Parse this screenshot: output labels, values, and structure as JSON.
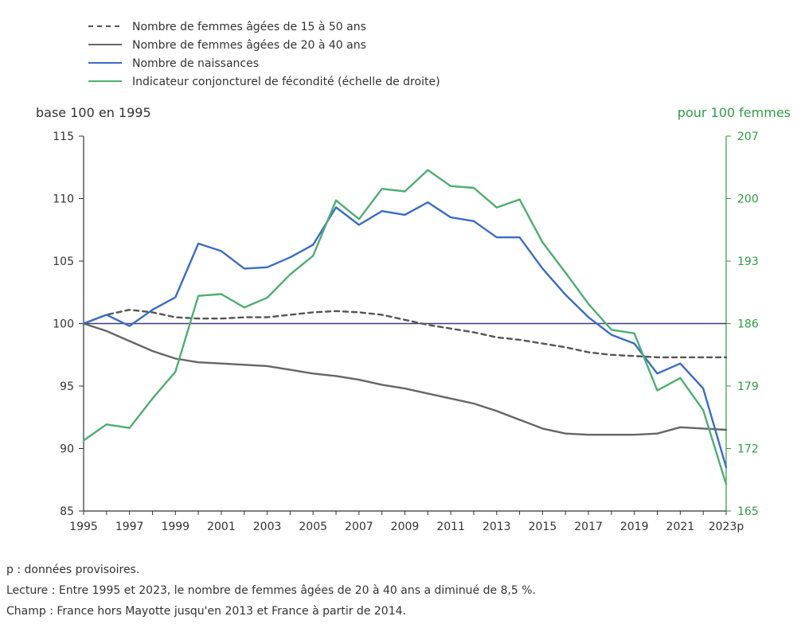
{
  "chart_data": {
    "type": "line",
    "legend": {
      "placement": "top-left",
      "entries": [
        "Nombre de femmes âgées de 15 à 50 ans",
        "Nombre de femmes âgées de 20 à 40 ans",
        "Nombre de naissances",
        "Indicateur conjoncturel de fécondité (échelle de droite)"
      ]
    },
    "y_left_label": "base 100 en 1995",
    "y_right_label": "pour 100 femmes",
    "ylim_left": [
      85,
      115
    ],
    "ylim_right": [
      165,
      207
    ],
    "y_left_ticks": [
      "115",
      "110",
      "105",
      "100",
      "95",
      "90",
      "85"
    ],
    "y_right_ticks": [
      "207",
      "200",
      "193",
      "186",
      "179",
      "172",
      "165"
    ],
    "x": [
      1995,
      1996,
      1997,
      1998,
      1999,
      2000,
      2001,
      2002,
      2003,
      2004,
      2005,
      2006,
      2007,
      2008,
      2009,
      2010,
      2011,
      2012,
      2013,
      2014,
      2015,
      2016,
      2017,
      2018,
      2019,
      2020,
      2021,
      2022,
      2023
    ],
    "x_tick_labels": [
      "1995",
      "1997",
      "1999",
      "2001",
      "2003",
      "2005",
      "2007",
      "2009",
      "2011",
      "2013",
      "2015",
      "2017",
      "2019",
      "2021",
      "2023p"
    ],
    "reference_line": 100,
    "grid": false,
    "series": [
      {
        "name": "Nombre de femmes âgées de 15 à 50 ans",
        "axis": "left",
        "color": "#555555",
        "style": "dashed",
        "values": [
          100,
          100.7,
          101.1,
          100.9,
          100.5,
          100.4,
          100.4,
          100.5,
          100.5,
          100.7,
          100.9,
          101.0,
          100.9,
          100.7,
          100.3,
          99.9,
          99.6,
          99.3,
          98.9,
          98.7,
          98.4,
          98.1,
          97.7,
          97.5,
          97.4,
          97.3,
          97.3,
          97.3,
          97.3
        ]
      },
      {
        "name": "Nombre de femmes âgées de 20 à 40 ans",
        "axis": "left",
        "color": "#666666",
        "style": "solid",
        "values": [
          100,
          99.4,
          98.6,
          97.8,
          97.2,
          96.9,
          96.8,
          96.7,
          96.6,
          96.3,
          96.0,
          95.8,
          95.5,
          95.1,
          94.8,
          94.4,
          94.0,
          93.6,
          93.0,
          92.3,
          91.6,
          91.2,
          91.1,
          91.1,
          91.1,
          91.2,
          91.7,
          91.6,
          91.5
        ]
      },
      {
        "name": "Nombre de naissances",
        "axis": "left",
        "color": "#3a6cc8",
        "style": "solid",
        "values": [
          100,
          100.7,
          99.8,
          101.1,
          102.1,
          106.4,
          105.8,
          104.4,
          104.5,
          105.3,
          106.3,
          109.3,
          107.9,
          109.0,
          108.7,
          109.7,
          108.5,
          108.2,
          106.9,
          106.9,
          104.4,
          102.3,
          100.5,
          99.1,
          98.4,
          96.0,
          96.8,
          94.8,
          88.5
        ]
      },
      {
        "name": "Indicateur conjoncturel de fécondité (échelle de droite)",
        "axis": "right",
        "color": "#4caf72",
        "style": "solid",
        "values": [
          172.9,
          174.7,
          174.3,
          177.6,
          180.6,
          189.1,
          189.3,
          187.8,
          188.9,
          191.5,
          193.6,
          199.8,
          197.7,
          201.1,
          200.8,
          203.2,
          201.4,
          201.2,
          199.0,
          199.9,
          195.1,
          191.7,
          188.2,
          185.3,
          184.9,
          178.5,
          179.9,
          176.3,
          168.0
        ]
      }
    ]
  },
  "notes": [
    "p : données provisoires.",
    "Lecture : Entre 1995 et 2023, le nombre de femmes âgées de 20 à 40 ans a diminué de 8,5 %.",
    "Champ : France hors Mayotte jusqu'en 2013 et France à partir de 2014."
  ],
  "colors": {
    "left_axis": "#333333",
    "right_axis": "#2e9d44",
    "reference": "#3d3d7a"
  }
}
